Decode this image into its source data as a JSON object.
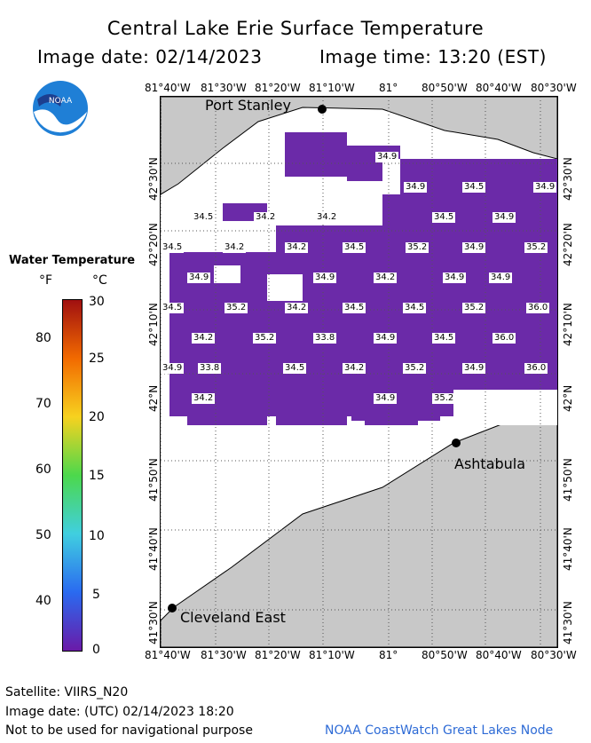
{
  "header": {
    "title": "Central Lake Erie Surface Temperature",
    "image_date": "Image date: 02/14/2023",
    "image_time": "Image time: 13:20 (EST)"
  },
  "axes": {
    "lon_labels": [
      "81°40'W",
      "81°30'W",
      "81°20'W",
      "81°10'W",
      "81°",
      "80°50'W",
      "80°40'W",
      "80°30'W"
    ],
    "lat_labels_left": [
      "42°30'N",
      "42°20'N",
      "42°10'N",
      "42°N",
      "41°50'N",
      "41°40'N",
      "41°30'N"
    ],
    "lat_labels_right": [
      "42°30'N",
      "42°20'N",
      "42°10'N",
      "42°N",
      "41°50'N",
      "41°40'N",
      "41°30'N"
    ]
  },
  "cities": [
    {
      "name": "Port Stanley"
    },
    {
      "name": "Ashtabula"
    },
    {
      "name": "Cleveland East"
    }
  ],
  "temperature_labels": [
    "34.9",
    "34.9",
    "34.5",
    "34.9",
    "34.5",
    "34.2",
    "34.2",
    "34.5",
    "34.9",
    "34.5",
    "34.2",
    "34.2",
    "34.5",
    "35.2",
    "34.9",
    "35.2",
    "34.9",
    "34.9",
    "34.2",
    "34.9",
    "34.9",
    "34.5",
    "35.2",
    "34.2",
    "34.5",
    "34.5",
    "35.2",
    "36.0",
    "34.2",
    "35.2",
    "33.8",
    "34.9",
    "34.5",
    "36.0",
    "34.9",
    "33.8",
    "34.5",
    "34.2",
    "35.2",
    "34.9",
    "36.0",
    "34.2",
    "34.9",
    "35.2"
  ],
  "legend": {
    "title": "Water Temperature",
    "unit_f": "°F",
    "unit_c": "°C",
    "f_labels": [
      "80",
      "70",
      "60",
      "50",
      "40"
    ],
    "c_labels": [
      "30",
      "25",
      "20",
      "15",
      "10",
      "5",
      "0"
    ],
    "colors": [
      "#a01010",
      "#f26a00",
      "#f7d21f",
      "#4cd84c",
      "#40cfe0",
      "#2a6af0",
      "#6a1aa8"
    ]
  },
  "footer": {
    "satellite": "Satellite: VIIRS_N20",
    "utc_date": "Image date: (UTC) 02/14/2023  18:20",
    "disclaimer": "Not to be used for navigational purpose",
    "credit": "NOAA CoastWatch Great Lakes Node"
  },
  "logo": {
    "text": "NOAA"
  },
  "colors": {
    "water": "#6b2aa8",
    "land": "#c8c8c8",
    "cloud": "#ffffff"
  }
}
